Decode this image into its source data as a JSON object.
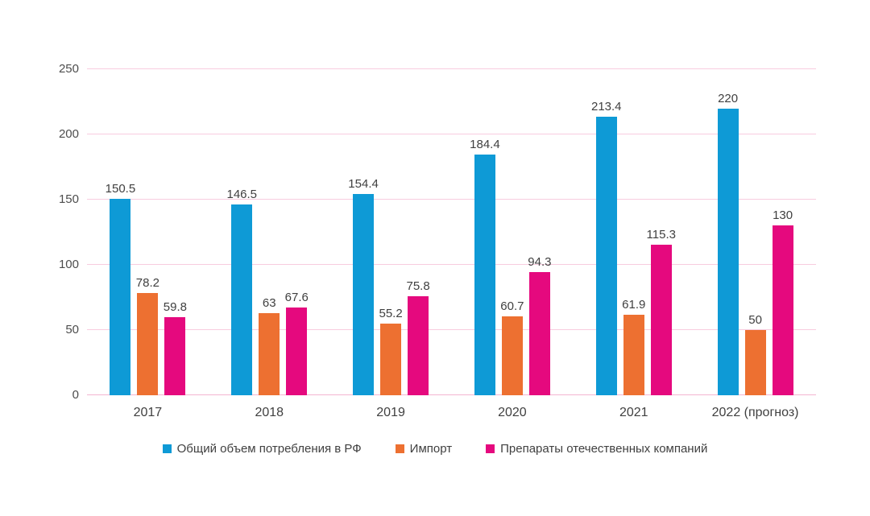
{
  "chart_data": {
    "type": "bar",
    "title": "",
    "categories": [
      "2017",
      "2018",
      "2019",
      "2020",
      "2021",
      "2022 (прогноз)"
    ],
    "series": [
      {
        "name": "Общий объем потребления в РФ",
        "color": "#0E9AD6",
        "values": [
          150.5,
          146.5,
          154.4,
          184.4,
          213.4,
          220
        ]
      },
      {
        "name": "Импорт",
        "color": "#ED7031",
        "values": [
          78.2,
          63,
          55.2,
          60.7,
          61.9,
          50
        ]
      },
      {
        "name": "Препараты отечественных компаний",
        "color": "#E5097E",
        "values": [
          59.8,
          67.6,
          75.8,
          94.3,
          115.3,
          130
        ]
      }
    ],
    "xlabel": "",
    "ylabel": "",
    "ylim": [
      0,
      250
    ],
    "y_ticks": [
      0,
      50,
      100,
      150,
      200,
      250
    ],
    "grid": true,
    "legend_position": "bottom",
    "colors": {
      "gridline": "#F8CCDF",
      "baseline": "#F4B4D0",
      "tick_label": "#4d4d4d",
      "value_label": "#404040"
    }
  }
}
